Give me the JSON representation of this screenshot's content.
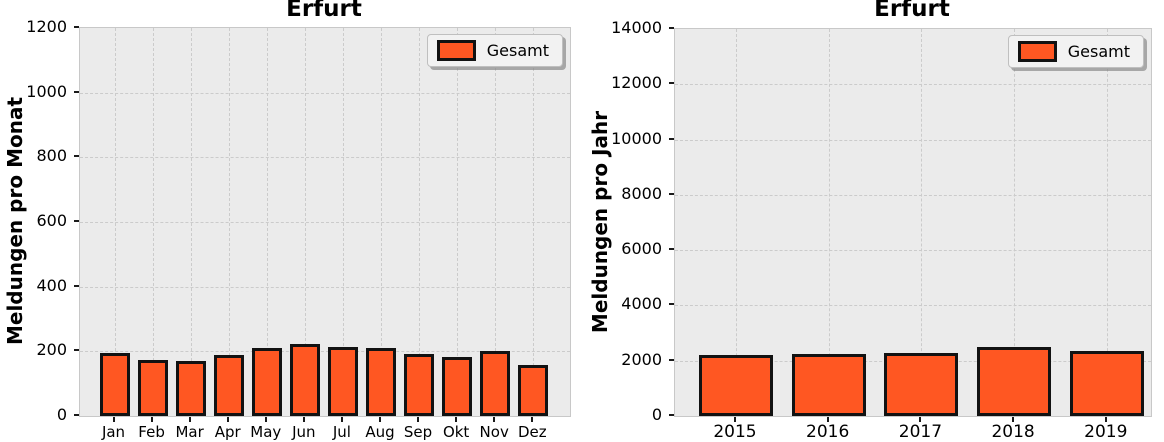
{
  "style": {
    "bar_fill": "#ff5722",
    "bar_edge": "#121212",
    "plot_bg": "#ebebeb",
    "grid": "#cbcbcb",
    "spine": "#c8c8c8",
    "legend_bg": "#f2f2f2",
    "legend_border": "#bfbfbf"
  },
  "chart_data": [
    {
      "type": "bar",
      "title": "Erfurt",
      "ylabel": "Meldungen pro Monat",
      "xlabel": "",
      "categories": [
        "Jan",
        "Feb",
        "Mar",
        "Apr",
        "May",
        "Jun",
        "Jul",
        "Aug",
        "Sep",
        "Okt",
        "Nov",
        "Dez"
      ],
      "values": [
        191,
        168,
        164,
        185,
        207,
        219,
        208,
        205,
        186,
        178,
        195,
        152
      ],
      "ylim": [
        0,
        1200
      ],
      "yticks": [
        0,
        200,
        400,
        600,
        800,
        1000,
        1200
      ],
      "grid": true,
      "legend": {
        "label": "Gesamt",
        "position": "upper right"
      }
    },
    {
      "type": "bar",
      "title": "Erfurt",
      "ylabel": "Meldungen pro Jahr",
      "xlabel": "",
      "categories": [
        "2015",
        "2016",
        "2017",
        "2018",
        "2019"
      ],
      "values": [
        2140,
        2180,
        2210,
        2450,
        2300
      ],
      "ylim": [
        0,
        14000
      ],
      "yticks": [
        0,
        2000,
        4000,
        6000,
        8000,
        10000,
        12000,
        14000
      ],
      "grid": true,
      "legend": {
        "label": "Gesamt",
        "position": "upper right"
      }
    }
  ]
}
